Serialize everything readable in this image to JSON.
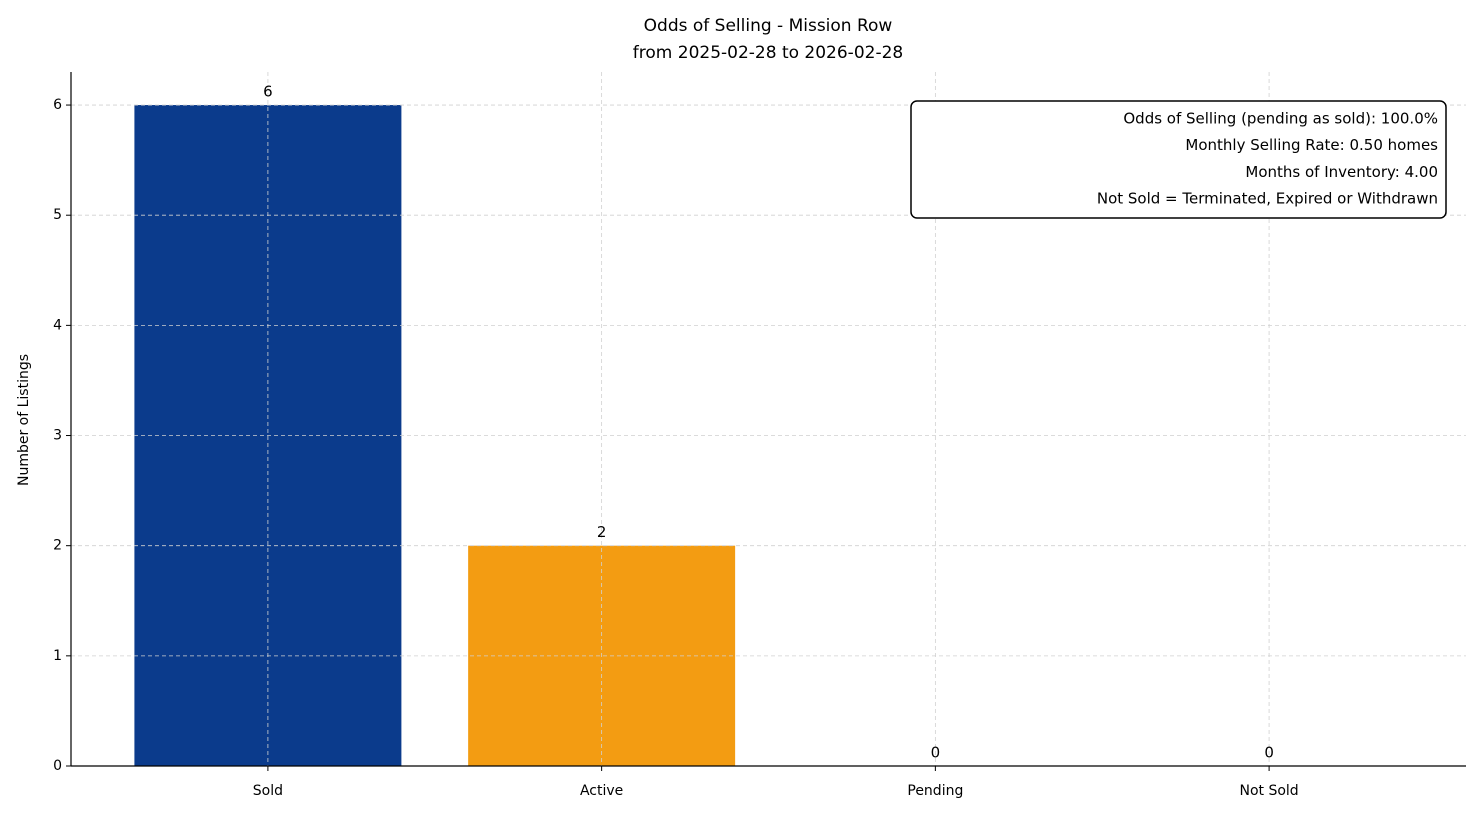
{
  "chart_data": {
    "type": "bar",
    "title": "Odds of Selling - Mission Row",
    "subtitle": "from 2025-02-28 to 2026-02-28",
    "y_label": "Number of Listings",
    "categories": [
      "Sold",
      "Active",
      "Pending",
      "Not Sold"
    ],
    "values": [
      6,
      2,
      0,
      0
    ],
    "colors": [
      "#0b3b8c",
      "#f39c12",
      "#7f8c8d",
      "#c0392b"
    ],
    "ylim": [
      0,
      6.3
    ],
    "yticks": [
      0,
      1,
      2,
      3,
      4,
      5,
      6
    ],
    "grid": true,
    "annotations": [
      "Odds of Selling (pending as sold): 100.0%",
      "Monthly Selling Rate: 0.50 homes",
      "Months of Inventory: 4.00",
      "Not Sold = Terminated, Expired or Withdrawn"
    ]
  }
}
